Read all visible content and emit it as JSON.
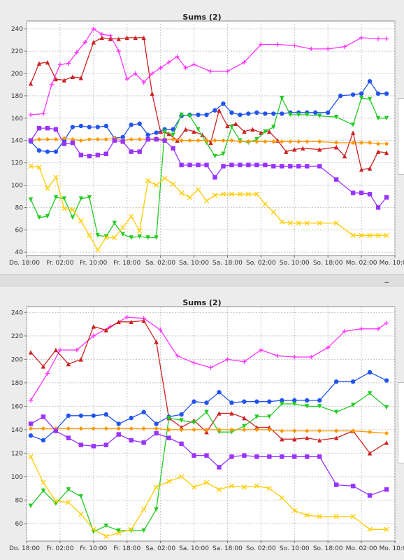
{
  "panels": [
    {
      "id": "top",
      "title": "Sums (2)"
    },
    {
      "id": "bottom",
      "title": "Sums (2)"
    }
  ],
  "separator_glyph": "_",
  "colors": {
    "magenta": "#ff33ff",
    "red": "#cc2222",
    "blue": "#2255ee",
    "green": "#22cc22",
    "orange": "#ff9900",
    "purple": "#9933ff",
    "yellow": "#ffcc00"
  },
  "chart_data": [
    {
      "type": "line",
      "title": "Sums (2)",
      "xlabel": "",
      "ylabel": "",
      "x_ticks": [
        "Do. 18:00",
        "Fr. 02:00",
        "Fr. 10:00",
        "Fr. 18:00",
        "Sa. 02:00",
        "Sa. 10:00",
        "Sa. 18:00",
        "So. 02:00",
        "So. 10:00",
        "So. 18:00",
        "Mo. 02:00",
        "Mo. 10:00"
      ],
      "y_ticks": [
        40,
        60,
        80,
        100,
        120,
        140,
        160,
        180,
        200,
        220,
        240
      ],
      "ylim": [
        37,
        247
      ],
      "xlim": [
        0,
        88
      ],
      "grid": true,
      "series": [
        {
          "color": "magenta",
          "marker": "plus",
          "x": [
            1,
            4,
            6,
            8,
            10,
            12,
            14,
            16,
            18,
            20,
            22,
            24,
            26,
            28,
            30,
            32,
            34,
            36,
            38,
            40,
            44,
            48,
            52,
            56,
            60,
            64,
            68,
            72,
            76,
            80,
            84,
            86
          ],
          "y": [
            163,
            164,
            190,
            208,
            209,
            219,
            228,
            240,
            235,
            234,
            220,
            195,
            200,
            192,
            200,
            205,
            210,
            215,
            205,
            208,
            202,
            202,
            210,
            226,
            226,
            225,
            222,
            222,
            224,
            232,
            231,
            231
          ]
        },
        {
          "color": "red",
          "marker": "triangle-up",
          "x": [
            1,
            3,
            5,
            7,
            9,
            11,
            13,
            16,
            18,
            20,
            22,
            24,
            26,
            28,
            30,
            32,
            34,
            36,
            38,
            40,
            42,
            44,
            46,
            48,
            50,
            52,
            54,
            56,
            58,
            60,
            62,
            64,
            66,
            70,
            74,
            76,
            78,
            80,
            82,
            84,
            86
          ],
          "y": [
            191,
            209,
            210,
            195,
            194,
            197,
            196,
            228,
            232,
            231,
            231,
            232,
            232,
            232,
            182,
            148,
            146,
            140,
            150,
            148,
            145,
            138,
            167,
            153,
            155,
            148,
            150,
            147,
            148,
            140,
            130,
            132,
            133,
            132,
            134,
            126,
            147,
            114,
            115,
            130,
            129
          ]
        },
        {
          "color": "blue",
          "marker": "circle",
          "x": [
            1,
            3,
            5,
            7,
            9,
            11,
            13,
            15,
            17,
            19,
            21,
            23,
            25,
            27,
            29,
            31,
            33,
            35,
            37,
            39,
            41,
            43,
            45,
            47,
            49,
            51,
            53,
            55,
            57,
            59,
            61,
            63,
            65,
            67,
            69,
            72,
            75,
            78,
            80,
            82,
            84,
            86
          ],
          "y": [
            139,
            131,
            130,
            130,
            140,
            152,
            153,
            152,
            152,
            153,
            142,
            143,
            154,
            155,
            145,
            147,
            150,
            150,
            162,
            163,
            163,
            163,
            167,
            173,
            165,
            163,
            164,
            165,
            164,
            164,
            164,
            165,
            165,
            165,
            165,
            165,
            180,
            181,
            182,
            193,
            182,
            182
          ]
        },
        {
          "color": "green",
          "marker": "triangle-down",
          "x": [
            1,
            3,
            5,
            7,
            9,
            11,
            13,
            15,
            17,
            19,
            21,
            23,
            25,
            27,
            29,
            31,
            33,
            35,
            37,
            39,
            41,
            43,
            45,
            47,
            49,
            51,
            53,
            55,
            57,
            59,
            61,
            63,
            65,
            67,
            70,
            74,
            78,
            80,
            82,
            84,
            86
          ],
          "y": [
            87,
            71,
            72,
            89,
            88,
            71,
            88,
            89,
            55,
            54,
            66,
            56,
            53,
            54,
            53,
            53,
            148,
            145,
            163,
            162,
            150,
            138,
            126,
            128,
            152,
            140,
            138,
            141,
            148,
            152,
            178,
            163,
            163,
            163,
            162,
            161,
            154,
            178,
            177,
            160,
            160
          ]
        },
        {
          "color": "orange",
          "marker": "diamond",
          "x": [
            1,
            3,
            5,
            7,
            9,
            11,
            13,
            15,
            17,
            19,
            21,
            23,
            25,
            27,
            29,
            31,
            33,
            35,
            37,
            39,
            41,
            43,
            45,
            47,
            49,
            51,
            53,
            55,
            57,
            59,
            61,
            63,
            65,
            67,
            70,
            74,
            78,
            80,
            82,
            84,
            86
          ],
          "y": [
            140,
            141,
            141,
            141,
            142,
            141,
            140,
            141,
            141,
            141,
            142,
            140,
            141,
            141,
            141,
            142,
            141,
            141,
            140,
            140,
            140,
            140,
            140,
            140,
            140,
            139,
            139,
            139,
            139,
            139,
            139,
            139,
            139,
            139,
            139,
            138,
            138,
            138,
            138,
            137,
            137
          ]
        },
        {
          "color": "purple",
          "marker": "square",
          "x": [
            1,
            3,
            5,
            7,
            9,
            11,
            13,
            15,
            17,
            19,
            21,
            23,
            25,
            27,
            29,
            31,
            33,
            35,
            37,
            39,
            41,
            43,
            45,
            47,
            49,
            51,
            53,
            55,
            57,
            59,
            61,
            63,
            65,
            67,
            70,
            74,
            78,
            80,
            82,
            84,
            86
          ],
          "y": [
            140,
            151,
            151,
            150,
            137,
            138,
            127,
            126,
            127,
            128,
            140,
            139,
            130,
            130,
            141,
            141,
            140,
            133,
            118,
            118,
            118,
            118,
            107,
            117,
            118,
            118,
            118,
            118,
            118,
            117,
            117,
            117,
            117,
            117,
            117,
            105,
            93,
            93,
            92,
            80,
            89
          ]
        },
        {
          "color": "yellow",
          "marker": "x",
          "x": [
            1,
            3,
            5,
            7,
            9,
            11,
            13,
            15,
            17,
            19,
            21,
            23,
            25,
            27,
            29,
            31,
            33,
            35,
            37,
            39,
            41,
            43,
            45,
            47,
            49,
            51,
            53,
            55,
            57,
            59,
            61,
            63,
            65,
            67,
            70,
            74,
            78,
            80,
            82,
            84,
            86
          ],
          "y": [
            117,
            116,
            97,
            107,
            79,
            78,
            68,
            55,
            42,
            53,
            53,
            62,
            72,
            59,
            104,
            100,
            106,
            101,
            93,
            89,
            96,
            86,
            91,
            92,
            92,
            92,
            92,
            92,
            83,
            76,
            67,
            66,
            66,
            66,
            66,
            66,
            55,
            55,
            55,
            55,
            55
          ]
        }
      ]
    },
    {
      "type": "line",
      "title": "Sums (2)",
      "xlabel": "",
      "ylabel": "",
      "x_ticks": [
        "Do. 18:00",
        "Fr. 02:00",
        "Fr. 10:00",
        "Fr. 18:00",
        "Sa. 02:00",
        "Sa. 10:00",
        "Sa. 18:00",
        "So. 02:00",
        "So. 10:00",
        "So. 18:00",
        "Mo. 02:00",
        "Mo. 10:00"
      ],
      "y_ticks": [
        60,
        80,
        100,
        120,
        140,
        160,
        180,
        200,
        220,
        240
      ],
      "ylim": [
        45,
        245
      ],
      "xlim": [
        0,
        88
      ],
      "grid": true,
      "series": [
        {
          "color": "magenta",
          "marker": "plus",
          "x": [
            1,
            5,
            8,
            12,
            16,
            20,
            24,
            28,
            32,
            36,
            40,
            44,
            48,
            52,
            56,
            60,
            64,
            68,
            72,
            76,
            80,
            84,
            86
          ],
          "y": [
            165,
            188,
            208,
            208,
            220,
            228,
            236,
            235,
            225,
            203,
            197,
            193,
            200,
            198,
            208,
            203,
            202,
            202,
            210,
            224,
            226,
            226,
            231
          ]
        },
        {
          "color": "red",
          "marker": "triangle-up",
          "x": [
            1,
            4,
            7,
            10,
            13,
            16,
            19,
            22,
            25,
            28,
            31,
            34,
            37,
            40,
            43,
            46,
            49,
            52,
            55,
            58,
            61,
            64,
            67,
            70,
            74,
            78,
            82,
            86
          ],
          "y": [
            206,
            194,
            208,
            196,
            200,
            228,
            225,
            232,
            232,
            233,
            215,
            150,
            142,
            148,
            138,
            154,
            154,
            150,
            142,
            142,
            132,
            132,
            133,
            131,
            133,
            139,
            120,
            129
          ]
        },
        {
          "color": "blue",
          "marker": "circle",
          "x": [
            1,
            4,
            7,
            10,
            13,
            16,
            19,
            22,
            25,
            28,
            31,
            34,
            37,
            40,
            43,
            46,
            49,
            52,
            55,
            58,
            61,
            64,
            67,
            70,
            74,
            78,
            82,
            86
          ],
          "y": [
            135,
            131,
            140,
            152,
            152,
            152,
            153,
            145,
            150,
            155,
            145,
            151,
            153,
            164,
            163,
            172,
            163,
            164,
            164,
            164,
            165,
            165,
            165,
            165,
            181,
            181,
            189,
            182
          ]
        },
        {
          "color": "green",
          "marker": "triangle-down",
          "x": [
            1,
            4,
            7,
            10,
            13,
            16,
            19,
            22,
            25,
            28,
            31,
            34,
            37,
            40,
            43,
            46,
            49,
            52,
            55,
            58,
            61,
            64,
            67,
            70,
            74,
            78,
            82,
            86
          ],
          "y": [
            75,
            88,
            77,
            89,
            83,
            53,
            58,
            54,
            54,
            54,
            72,
            150,
            148,
            146,
            155,
            138,
            138,
            143,
            151,
            151,
            162,
            162,
            160,
            160,
            155,
            161,
            171,
            159
          ]
        },
        {
          "color": "orange",
          "marker": "diamond",
          "x": [
            1,
            4,
            7,
            10,
            13,
            16,
            19,
            22,
            25,
            28,
            31,
            34,
            37,
            40,
            43,
            46,
            49,
            52,
            55,
            58,
            61,
            64,
            67,
            70,
            74,
            78,
            82,
            86
          ],
          "y": [
            141,
            141,
            141,
            141,
            141,
            141,
            141,
            141,
            141,
            141,
            141,
            140,
            140,
            140,
            140,
            140,
            140,
            140,
            140,
            140,
            139,
            139,
            139,
            139,
            139,
            139,
            138,
            137
          ]
        },
        {
          "color": "purple",
          "marker": "square",
          "x": [
            1,
            4,
            7,
            10,
            13,
            16,
            19,
            22,
            25,
            28,
            31,
            34,
            37,
            40,
            43,
            46,
            49,
            52,
            55,
            58,
            61,
            64,
            67,
            70,
            74,
            78,
            82,
            86
          ],
          "y": [
            145,
            151,
            139,
            133,
            127,
            126,
            127,
            136,
            131,
            129,
            137,
            133,
            128,
            118,
            118,
            108,
            117,
            118,
            117,
            117,
            117,
            117,
            117,
            117,
            93,
            92,
            84,
            89
          ]
        },
        {
          "color": "yellow",
          "marker": "x",
          "x": [
            1,
            4,
            7,
            10,
            13,
            16,
            19,
            22,
            25,
            28,
            31,
            34,
            37,
            40,
            43,
            46,
            49,
            52,
            55,
            58,
            61,
            64,
            67,
            70,
            74,
            78,
            82,
            86
          ],
          "y": [
            117,
            95,
            79,
            78,
            68,
            55,
            49,
            52,
            55,
            72,
            91,
            96,
            100,
            91,
            95,
            89,
            92,
            91,
            92,
            90,
            82,
            71,
            67,
            66,
            66,
            66,
            55,
            55
          ]
        }
      ]
    }
  ]
}
